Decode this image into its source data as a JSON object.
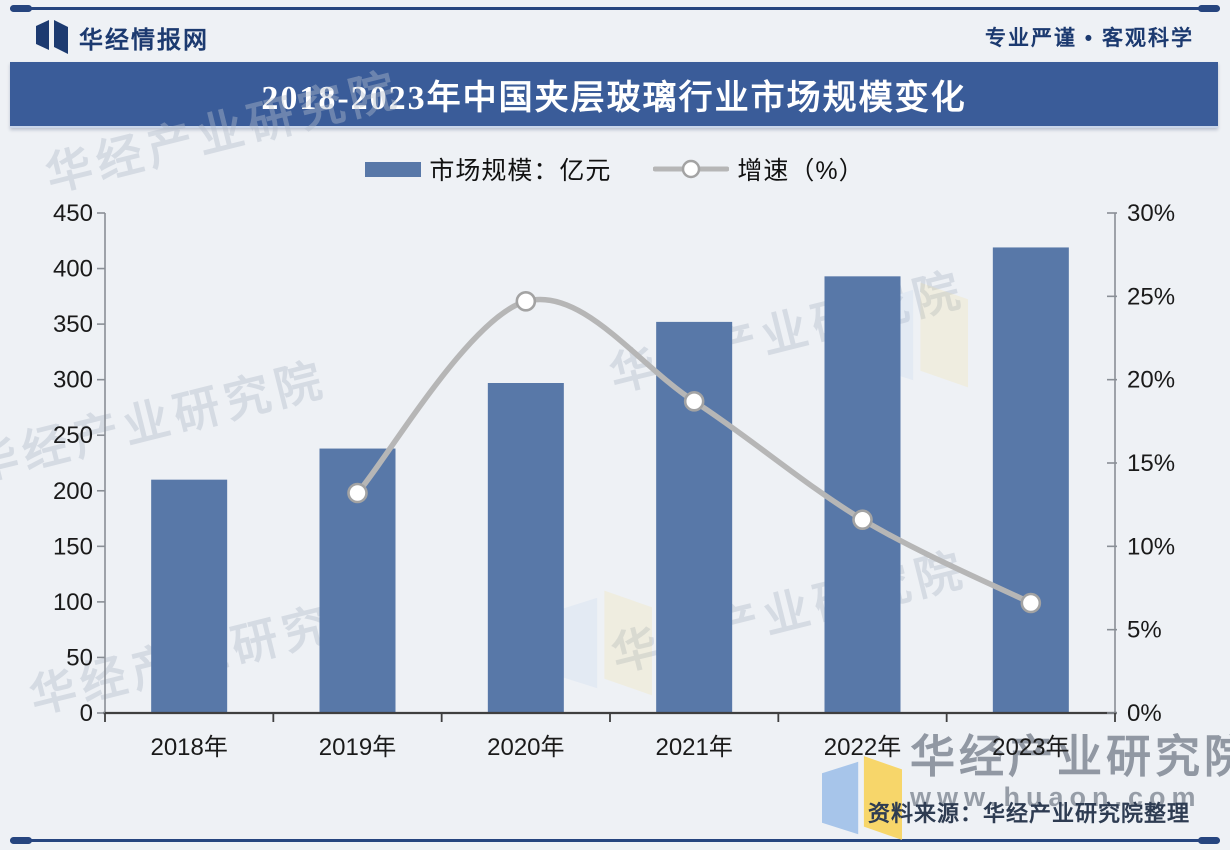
{
  "header": {
    "brand": "华经情报网",
    "slogan": "专业严谨 • 客观科学"
  },
  "banner": {
    "title": "2018-2023年中国夹层玻璃行业市场规模变化"
  },
  "legend": {
    "bar_label": "市场规模：亿元",
    "line_label": "增速（%）"
  },
  "watermark": {
    "diagonal_text": "华经产业研究院",
    "brand": "华经产业研究院",
    "url": "www.huaon.com"
  },
  "footer": {
    "source": "资料来源：华经产业研究院整理"
  },
  "colors": {
    "bar": "#5878A8",
    "line": "#B6B6B6",
    "marker_stroke": "#A3A3A3",
    "banner_bg": "#3A5C99",
    "navy": "#1C3A70",
    "axis_gray": "#8A8F96",
    "baseline_dark": "#3F3F3F"
  },
  "chart_data": {
    "type": "bar+line combo",
    "title": "2018-2023年中国夹层玻璃行业市场规模变化",
    "categories": [
      "2018年",
      "2019年",
      "2020年",
      "2021年",
      "2022年",
      "2023年"
    ],
    "series": [
      {
        "name": "市场规模：亿元",
        "type": "bar",
        "axis": "left",
        "color": "#5878A8",
        "values": [
          210,
          238,
          297,
          352,
          393,
          419
        ]
      },
      {
        "name": "增速（%）",
        "type": "line",
        "axis": "right",
        "color": "#B6B6B6",
        "values": [
          null,
          13.2,
          24.7,
          18.7,
          11.6,
          6.6
        ]
      }
    ],
    "left_axis": {
      "min": 0,
      "max": 450,
      "step": 50,
      "tick_labels": [
        "450",
        "400",
        "350",
        "300",
        "250",
        "200",
        "150",
        "100",
        "50",
        "0"
      ]
    },
    "right_axis": {
      "min": 0,
      "max": 30,
      "step": 5,
      "tick_labels": [
        "30%",
        "25%",
        "20%",
        "15%",
        "10%",
        "5%",
        "0%"
      ]
    },
    "grid": false,
    "legend_position": "top"
  }
}
